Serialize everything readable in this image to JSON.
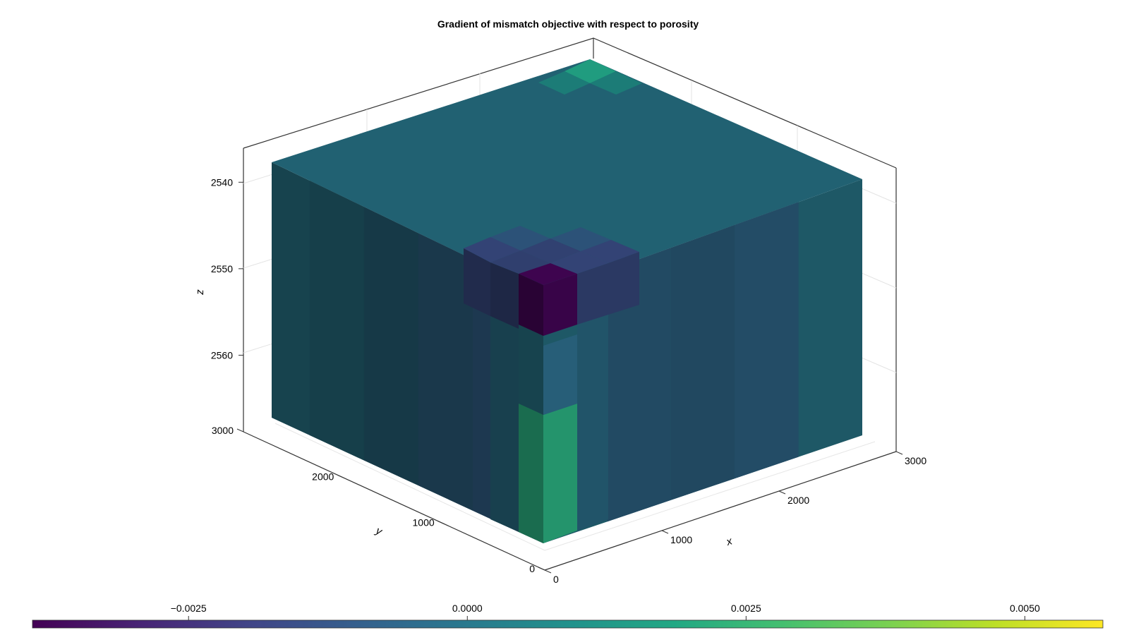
{
  "chart_data": {
    "type": "heatmap",
    "title": "Gradient of mismatch objective with respect to porosity",
    "xlabel": "x",
    "ylabel": "y",
    "zlabel": "z",
    "xlim": [
      0,
      3000
    ],
    "ylim": [
      0,
      3000
    ],
    "zlim": [
      2535,
      2570
    ],
    "z_reversed": true,
    "x_ticks": [
      "0",
      "1000",
      "2000",
      "3000"
    ],
    "y_ticks": [
      "0",
      "1000",
      "2000",
      "3000"
    ],
    "z_ticks": [
      "2540",
      "2550",
      "2560"
    ],
    "colormap": "viridis",
    "colorbar": {
      "placement": "bottom",
      "range": [
        -0.0039,
        0.0057
      ],
      "ticks": [
        "−0.0025",
        "0.0000",
        "0.0025",
        "0.0050"
      ],
      "tick_values": [
        -0.0025,
        0,
        0.0025,
        0.005
      ]
    },
    "visible_features": [
      {
        "name": "background",
        "value": 0.0
      },
      {
        "name": "injector-top-cell",
        "value": -0.0038
      },
      {
        "name": "injector-neighbors",
        "value": -0.0016
      },
      {
        "name": "producer-column-lower",
        "value": 0.0021
      },
      {
        "name": "far-corner-top-cell",
        "value": 0.0017
      }
    ],
    "grid": true
  }
}
